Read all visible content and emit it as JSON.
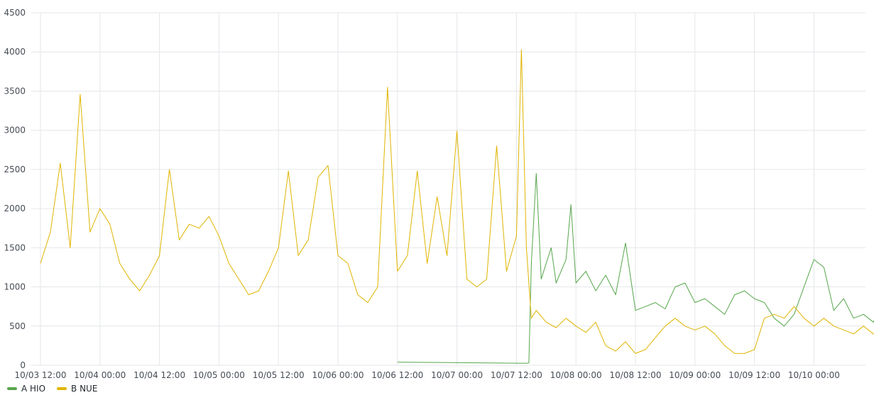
{
  "chart_data": {
    "type": "line",
    "x_unit": "time",
    "x_ticks": [
      "10/03 12:00",
      "10/04 00:00",
      "10/04 12:00",
      "10/05 00:00",
      "10/05 12:00",
      "10/06 00:00",
      "10/06 12:00",
      "10/07 00:00",
      "10/07 12:00",
      "10/08 00:00",
      "10/08 12:00",
      "10/09 00:00",
      "10/09 12:00",
      "10/10 00:00"
    ],
    "xlim": [
      "10/03 12:00",
      "10/10 20:00"
    ],
    "y_ticks": [
      0,
      500,
      1000,
      1500,
      2000,
      2500,
      3000,
      3500,
      4000,
      4500
    ],
    "ylim": [
      0,
      4500
    ],
    "grid": true,
    "legend_position": "bottom-left",
    "series": [
      {
        "name": "A HIO",
        "color": "#56a64b",
        "points": [
          [
            "10/06 12:00",
            40
          ],
          [
            "10/07 14:00",
            25
          ],
          [
            "10/07 14:30",
            30
          ],
          [
            "10/07 15:00",
            1300
          ],
          [
            "10/07 16:00",
            2450
          ],
          [
            "10/07 17:00",
            1100
          ],
          [
            "10/07 19:00",
            1500
          ],
          [
            "10/07 20:00",
            1050
          ],
          [
            "10/07 22:00",
            1350
          ],
          [
            "10/07 23:00",
            2050
          ],
          [
            "10/08 00:00",
            1050
          ],
          [
            "10/08 02:00",
            1200
          ],
          [
            "10/08 04:00",
            950
          ],
          [
            "10/08 06:00",
            1150
          ],
          [
            "10/08 08:00",
            900
          ],
          [
            "10/08 10:00",
            1560
          ],
          [
            "10/08 12:00",
            700
          ],
          [
            "10/08 14:00",
            750
          ],
          [
            "10/08 16:00",
            800
          ],
          [
            "10/08 18:00",
            720
          ],
          [
            "10/08 20:00",
            1000
          ],
          [
            "10/08 22:00",
            1050
          ],
          [
            "10/09 00:00",
            800
          ],
          [
            "10/09 02:00",
            850
          ],
          [
            "10/09 04:00",
            750
          ],
          [
            "10/09 06:00",
            650
          ],
          [
            "10/09 08:00",
            900
          ],
          [
            "10/09 10:00",
            950
          ],
          [
            "10/09 12:00",
            850
          ],
          [
            "10/09 14:00",
            800
          ],
          [
            "10/09 16:00",
            600
          ],
          [
            "10/09 18:00",
            500
          ],
          [
            "10/09 20:00",
            650
          ],
          [
            "10/09 22:00",
            1000
          ],
          [
            "10/10 00:00",
            1350
          ],
          [
            "10/10 02:00",
            1250
          ],
          [
            "10/10 04:00",
            700
          ],
          [
            "10/10 06:00",
            850
          ],
          [
            "10/10 08:00",
            600
          ],
          [
            "10/10 10:00",
            650
          ],
          [
            "10/10 12:00",
            550
          ],
          [
            "10/10 14:00",
            850
          ],
          [
            "10/10 16:00",
            750
          ],
          [
            "10/10 18:00",
            600
          ],
          [
            "10/10 20:00",
            200
          ]
        ]
      },
      {
        "name": "B NUE",
        "color": "#e0b400",
        "points": [
          [
            "10/03 12:00",
            1300
          ],
          [
            "10/03 14:00",
            1700
          ],
          [
            "10/03 16:00",
            2580
          ],
          [
            "10/03 18:00",
            1500
          ],
          [
            "10/03 20:00",
            3460
          ],
          [
            "10/03 22:00",
            1700
          ],
          [
            "10/04 00:00",
            2000
          ],
          [
            "10/04 02:00",
            1800
          ],
          [
            "10/04 04:00",
            1300
          ],
          [
            "10/04 06:00",
            1100
          ],
          [
            "10/04 08:00",
            950
          ],
          [
            "10/04 10:00",
            1150
          ],
          [
            "10/04 12:00",
            1400
          ],
          [
            "10/04 14:00",
            2500
          ],
          [
            "10/04 16:00",
            1600
          ],
          [
            "10/04 18:00",
            1800
          ],
          [
            "10/04 20:00",
            1750
          ],
          [
            "10/04 22:00",
            1900
          ],
          [
            "10/05 00:00",
            1650
          ],
          [
            "10/05 02:00",
            1300
          ],
          [
            "10/05 04:00",
            1100
          ],
          [
            "10/05 06:00",
            900
          ],
          [
            "10/05 08:00",
            950
          ],
          [
            "10/05 10:00",
            1200
          ],
          [
            "10/05 12:00",
            1500
          ],
          [
            "10/05 14:00",
            2480
          ],
          [
            "10/05 16:00",
            1400
          ],
          [
            "10/05 18:00",
            1600
          ],
          [
            "10/05 20:00",
            2400
          ],
          [
            "10/05 22:00",
            2550
          ],
          [
            "10/06 00:00",
            1400
          ],
          [
            "10/06 02:00",
            1300
          ],
          [
            "10/06 04:00",
            900
          ],
          [
            "10/06 06:00",
            800
          ],
          [
            "10/06 08:00",
            1000
          ],
          [
            "10/06 10:00",
            3550
          ],
          [
            "10/06 12:00",
            1200
          ],
          [
            "10/06 14:00",
            1400
          ],
          [
            "10/06 16:00",
            2480
          ],
          [
            "10/06 18:00",
            1300
          ],
          [
            "10/06 20:00",
            2150
          ],
          [
            "10/06 22:00",
            1400
          ],
          [
            "10/07 00:00",
            2990
          ],
          [
            "10/07 02:00",
            1100
          ],
          [
            "10/07 04:00",
            1000
          ],
          [
            "10/07 06:00",
            1100
          ],
          [
            "10/07 08:00",
            2800
          ],
          [
            "10/07 10:00",
            1200
          ],
          [
            "10/07 12:00",
            1650
          ],
          [
            "10/07 13:00",
            4030
          ],
          [
            "10/07 14:00",
            1500
          ],
          [
            "10/07 15:00",
            600
          ],
          [
            "10/07 16:00",
            700
          ],
          [
            "10/07 18:00",
            550
          ],
          [
            "10/07 20:00",
            480
          ],
          [
            "10/07 22:00",
            600
          ],
          [
            "10/08 00:00",
            500
          ],
          [
            "10/08 02:00",
            420
          ],
          [
            "10/08 04:00",
            550
          ],
          [
            "10/08 06:00",
            250
          ],
          [
            "10/08 08:00",
            180
          ],
          [
            "10/08 10:00",
            300
          ],
          [
            "10/08 12:00",
            150
          ],
          [
            "10/08 14:00",
            200
          ],
          [
            "10/08 16:00",
            350
          ],
          [
            "10/08 18:00",
            500
          ],
          [
            "10/08 20:00",
            600
          ],
          [
            "10/08 22:00",
            500
          ],
          [
            "10/09 00:00",
            450
          ],
          [
            "10/09 02:00",
            500
          ],
          [
            "10/09 04:00",
            400
          ],
          [
            "10/09 06:00",
            250
          ],
          [
            "10/09 08:00",
            150
          ],
          [
            "10/09 10:00",
            150
          ],
          [
            "10/09 12:00",
            200
          ],
          [
            "10/09 14:00",
            600
          ],
          [
            "10/09 16:00",
            650
          ],
          [
            "10/09 18:00",
            600
          ],
          [
            "10/09 20:00",
            750
          ],
          [
            "10/09 22:00",
            600
          ],
          [
            "10/10 00:00",
            500
          ],
          [
            "10/10 02:00",
            600
          ],
          [
            "10/10 04:00",
            500
          ],
          [
            "10/10 06:00",
            450
          ],
          [
            "10/10 08:00",
            400
          ],
          [
            "10/10 10:00",
            500
          ],
          [
            "10/10 12:00",
            400
          ],
          [
            "10/10 14:00",
            300
          ],
          [
            "10/10 16:00",
            250
          ],
          [
            "10/10 18:00",
            200
          ],
          [
            "10/10 20:00",
            180
          ]
        ]
      }
    ]
  }
}
